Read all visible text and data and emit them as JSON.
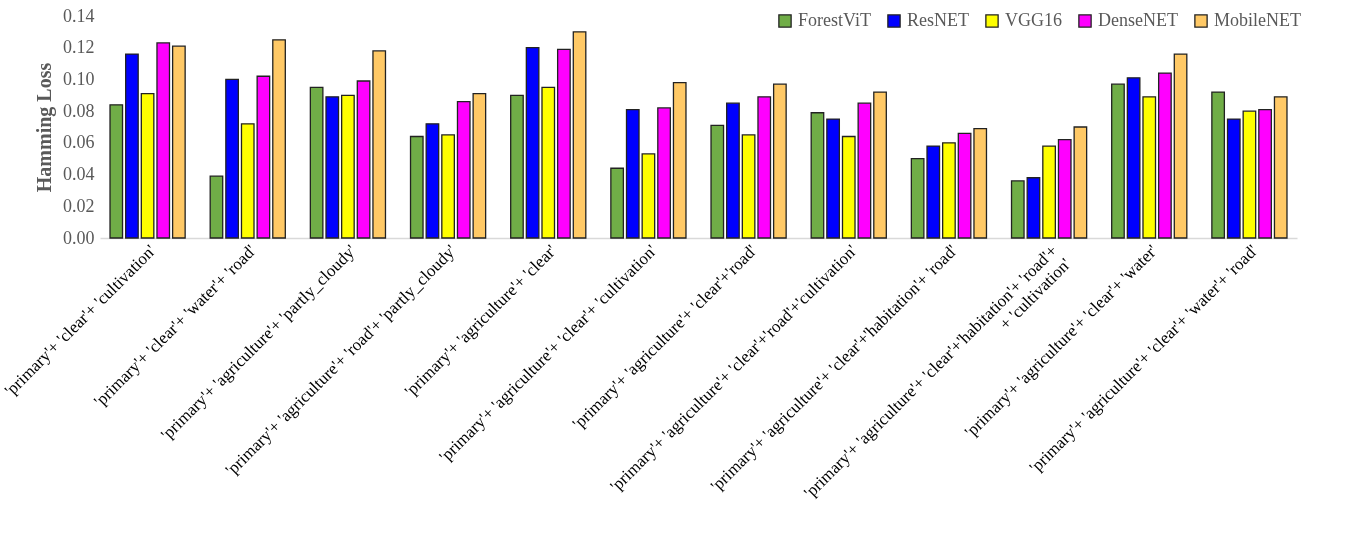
{
  "chart_data": {
    "type": "bar",
    "ylabel": "Hamming Loss",
    "categories": [
      "'primary'+ 'clear'+ 'cultivation'",
      "'primary'+ 'clear'+ 'water'+  'road'",
      "'primary'+ 'agriculture'+ 'partly_cloudy'",
      "'primary'+ 'agriculture'+ 'road'+ 'partly_cloudy'",
      "'primary'+ 'agriculture'+ 'clear'",
      "'primary'+ 'agriculture'+ 'clear'+ 'cultivation'",
      "'primary'+ 'agriculture'+ 'clear'+'road'",
      "'primary'+ 'agriculture'+ 'clear'+'road'+'cultivation'",
      "'primary'+ 'agriculture'+ 'clear'+'habitation'+ 'road'",
      "'primary'+ 'agriculture'+ 'clear'+'habitation'+ 'road'+\n+ 'cultivation'",
      "'primary'+ 'agriculture'+ 'clear'+ 'water'",
      "'primary'+ 'agriculture'+ 'clear'+ 'water'+ 'road'"
    ],
    "series": [
      {
        "name": "ForestViT",
        "color": "#70ad47",
        "values": [
          0.084,
          0.039,
          0.095,
          0.064,
          0.09,
          0.044,
          0.071,
          0.079,
          0.05,
          0.036,
          0.097,
          0.092
        ]
      },
      {
        "name": "ResNET",
        "color": "#0000ff",
        "values": [
          0.116,
          0.1,
          0.089,
          0.072,
          0.12,
          0.081,
          0.085,
          0.075,
          0.058,
          0.038,
          0.101,
          0.075
        ]
      },
      {
        "name": "VGG16",
        "color": "#ffff00",
        "values": [
          0.091,
          0.072,
          0.09,
          0.065,
          0.095,
          0.053,
          0.065,
          0.064,
          0.06,
          0.058,
          0.089,
          0.08
        ]
      },
      {
        "name": "DenseNET",
        "color": "#ff00ff",
        "values": [
          0.123,
          0.102,
          0.099,
          0.086,
          0.119,
          0.082,
          0.089,
          0.085,
          0.066,
          0.062,
          0.104,
          0.081
        ]
      },
      {
        "name": "MobileNET",
        "color": "#ffc966",
        "values": [
          0.121,
          0.125,
          0.118,
          0.091,
          0.13,
          0.098,
          0.097,
          0.092,
          0.069,
          0.07,
          0.116,
          0.089
        ]
      }
    ],
    "ylim": [
      0,
      0.14
    ],
    "yticks": [
      {
        "value": 0,
        "label": "0.00"
      },
      0.02,
      0.04,
      0.06,
      0.08,
      {
        "value": 0.1,
        "label": "0.10"
      },
      {
        "value": 0.12,
        "label": "0.12"
      },
      {
        "value": 0.14,
        "label": "0.14"
      }
    ],
    "grid": false,
    "legend": "top right"
  }
}
